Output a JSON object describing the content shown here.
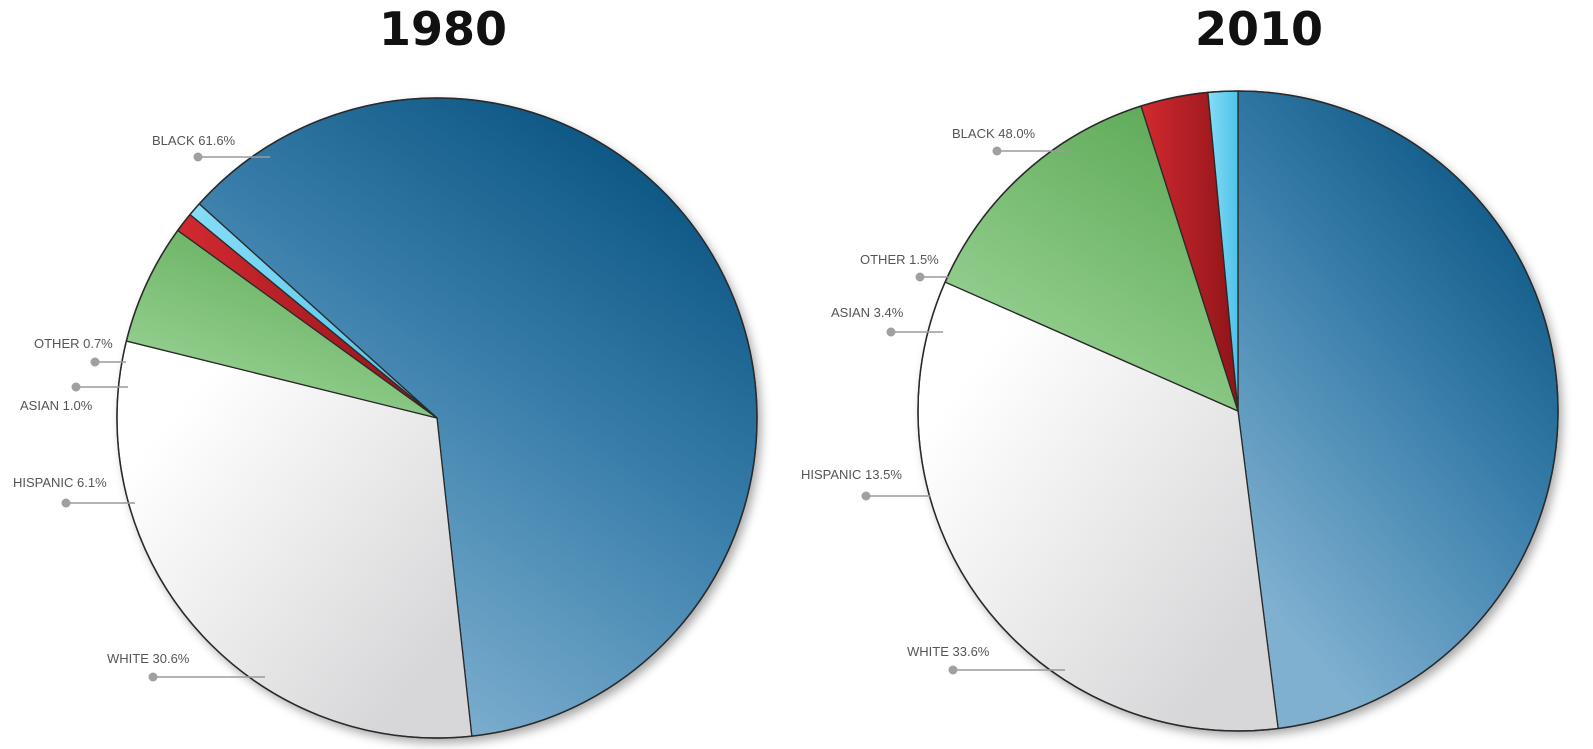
{
  "colors": {
    "Black": "#2b6f9c",
    "White": "#e9e9ea",
    "Hispanic": "#74b96e",
    "Asian": "#b8232a",
    "Other": "#6cd0ef"
  },
  "chart_data": [
    {
      "type": "pie",
      "title": "1980",
      "slices": [
        {
          "category": "Black",
          "label": "BLACK 61.6%",
          "value": 61.6
        },
        {
          "category": "White",
          "label": "WHITE 30.6%",
          "value": 30.6
        },
        {
          "category": "Hispanic",
          "label": "HISPANIC 6.1%",
          "value": 6.1
        },
        {
          "category": "Asian",
          "label": "ASIAN 1.0%",
          "value": 1.0
        },
        {
          "category": "Other",
          "label": "OTHER 0.7%",
          "value": 0.7
        }
      ]
    },
    {
      "type": "pie",
      "title": "2010",
      "slices": [
        {
          "category": "Black",
          "label": "BLACK 48.0%",
          "value": 48.0
        },
        {
          "category": "White",
          "label": "WHITE 33.6%",
          "value": 33.6
        },
        {
          "category": "Hispanic",
          "label": "HISPANIC 13.5%",
          "value": 13.5
        },
        {
          "category": "Asian",
          "label": "ASIAN 3.4%",
          "value": 3.4
        },
        {
          "category": "Other",
          "label": "OTHER 1.5%",
          "value": 1.5
        }
      ]
    }
  ]
}
